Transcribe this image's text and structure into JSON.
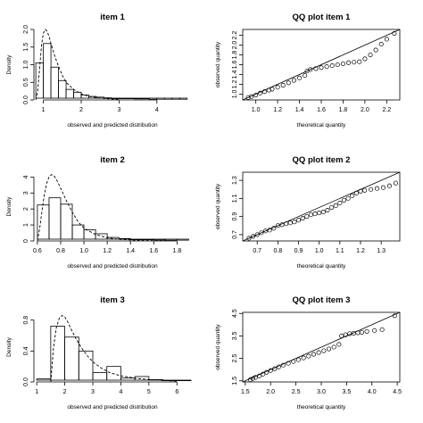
{
  "chart_data": [
    {
      "type": "histogram",
      "title": "item 1",
      "xlabel": "observed and predicted distribution",
      "ylabel": "Density",
      "xlim": [
        0.75,
        4.9
      ],
      "ylim": [
        0,
        2.0
      ],
      "xticks": [
        "1",
        "2",
        "3",
        "4"
      ],
      "yticks": [
        "0.0",
        "0.5",
        "1.0",
        "1.5",
        "2.0"
      ],
      "bins": [
        0.8,
        1.0,
        1.2,
        1.4,
        1.6,
        1.8,
        2.0,
        2.2,
        2.4,
        2.6,
        2.8,
        3.0,
        3.2,
        3.4,
        3.6,
        3.8,
        4.0,
        4.2,
        4.4,
        4.6,
        4.8
      ],
      "density": [
        1.05,
        1.6,
        0.93,
        0.55,
        0.3,
        0.22,
        0.14,
        0.1,
        0.08,
        0.06,
        0.05,
        0.05,
        0.04,
        0.03,
        0.03,
        0.02,
        0.02,
        0.02,
        0.02,
        0.02
      ],
      "curve": {
        "x": [
          0.8,
          0.85,
          0.9,
          0.95,
          1.0,
          1.05,
          1.1,
          1.15,
          1.2,
          1.3,
          1.4,
          1.5,
          1.6,
          1.8,
          2.0,
          2.2,
          2.5,
          3.0
        ],
        "y": [
          0,
          0.25,
          0.9,
          1.55,
          1.9,
          2.0,
          1.95,
          1.8,
          1.6,
          1.25,
          0.95,
          0.7,
          0.5,
          0.3,
          0.17,
          0.1,
          0.05,
          0.01
        ]
      }
    },
    {
      "type": "scatter",
      "title": "QQ plot item 1",
      "xlabel": "theoretical quantity",
      "ylabel": "observed quantity",
      "xlim": [
        0.88,
        2.32
      ],
      "ylim": [
        0.88,
        2.32
      ],
      "xticks": [
        "1.0",
        "1.2",
        "1.4",
        "1.6",
        "1.8",
        "2.0",
        "2.2"
      ],
      "yticks": [
        "1.0",
        "1.2",
        "1.4",
        "1.6",
        "1.8",
        "2.0",
        "2.2"
      ],
      "reference_line": "y = x",
      "points": {
        "x": [
          0.93,
          0.96,
          1.0,
          1.04,
          1.08,
          1.12,
          1.15,
          1.2,
          1.25,
          1.3,
          1.35,
          1.4,
          1.45,
          1.47,
          1.5,
          1.55,
          1.6,
          1.65,
          1.7,
          1.75,
          1.8,
          1.85,
          1.9,
          1.95,
          2.0,
          2.05,
          2.1,
          2.15,
          2.2,
          2.27
        ],
        "y": [
          0.93,
          0.95,
          0.98,
          1.02,
          1.05,
          1.08,
          1.1,
          1.14,
          1.18,
          1.23,
          1.28,
          1.33,
          1.38,
          1.47,
          1.5,
          1.52,
          1.54,
          1.56,
          1.58,
          1.6,
          1.62,
          1.64,
          1.65,
          1.66,
          1.72,
          1.8,
          1.9,
          2.02,
          2.12,
          2.24
        ]
      }
    },
    {
      "type": "histogram",
      "title": "item 2",
      "xlabel": "observed and predicted distribution",
      "ylabel": "Density",
      "xlim": [
        0.57,
        1.92
      ],
      "ylim": [
        0,
        4.3
      ],
      "xticks": [
        "0.6",
        "0.8",
        "1.0",
        "1.2",
        "1.4",
        "1.6",
        "1.8"
      ],
      "yticks": [
        "0",
        "1",
        "2",
        "3",
        "4"
      ],
      "bins": [
        0.6,
        0.7,
        0.8,
        0.9,
        1.0,
        1.1,
        1.2,
        1.3,
        1.4,
        1.5,
        1.6,
        1.7,
        1.8,
        1.9
      ],
      "density": [
        2.25,
        2.7,
        2.3,
        1.0,
        0.7,
        0.45,
        0.22,
        0.15,
        0.1,
        0.08,
        0.06,
        0.05,
        0.05
      ],
      "curve": {
        "x": [
          0.6,
          0.62,
          0.64,
          0.66,
          0.68,
          0.7,
          0.72,
          0.74,
          0.76,
          0.8,
          0.85,
          0.9,
          0.95,
          1.0,
          1.1,
          1.2,
          1.3,
          1.5,
          1.7
        ],
        "y": [
          0,
          0.8,
          1.9,
          2.9,
          3.6,
          4.0,
          4.15,
          4.1,
          3.9,
          3.3,
          2.5,
          1.8,
          1.2,
          0.8,
          0.4,
          0.2,
          0.1,
          0.03,
          0.01
        ]
      }
    },
    {
      "type": "scatter",
      "title": "QQ plot item 2",
      "xlabel": "theoretical quantity",
      "ylabel": "observed quantity",
      "xlim": [
        0.63,
        1.39
      ],
      "ylim": [
        0.63,
        1.39
      ],
      "xticks": [
        "0.7",
        "0.8",
        "0.9",
        "1.0",
        "1.1",
        "1.2",
        "1.3"
      ],
      "yticks": [
        "0.7",
        "0.9",
        "1.1",
        "1.3"
      ],
      "reference_line": "y = x",
      "points": {
        "x": [
          0.66,
          0.68,
          0.7,
          0.72,
          0.74,
          0.76,
          0.78,
          0.8,
          0.82,
          0.84,
          0.86,
          0.88,
          0.9,
          0.92,
          0.94,
          0.96,
          0.98,
          1.0,
          1.02,
          1.04,
          1.06,
          1.08,
          1.1,
          1.12,
          1.14,
          1.16,
          1.18,
          1.2,
          1.22,
          1.25,
          1.28,
          1.31,
          1.34,
          1.37
        ],
        "y": [
          0.66,
          0.68,
          0.7,
          0.72,
          0.74,
          0.75,
          0.77,
          0.8,
          0.81,
          0.82,
          0.83,
          0.84,
          0.86,
          0.88,
          0.9,
          0.92,
          0.93,
          0.94,
          0.95,
          0.97,
          1.0,
          1.02,
          1.05,
          1.08,
          1.1,
          1.13,
          1.16,
          1.18,
          1.19,
          1.2,
          1.21,
          1.22,
          1.24,
          1.27
        ]
      }
    },
    {
      "type": "histogram",
      "title": "item 3",
      "xlabel": "observed and predicted distribution",
      "ylabel": "Density",
      "xlim": [
        0.9,
        6.5
      ],
      "ylim": [
        0,
        0.9
      ],
      "xticks": [
        "1",
        "2",
        "3",
        "4",
        "5",
        "6"
      ],
      "yticks": [
        "0.0",
        "0.4",
        "0.8"
      ],
      "bins": [
        1.0,
        1.5,
        2.0,
        2.5,
        3.0,
        3.5,
        4.0,
        4.5,
        5.0,
        5.5,
        6.0,
        6.5
      ],
      "density": [
        0.04,
        0.72,
        0.58,
        0.4,
        0.12,
        0.2,
        0.05,
        0.07,
        0.03,
        0.02,
        0.02
      ],
      "curve": {
        "x": [
          1.5,
          1.6,
          1.7,
          1.8,
          1.9,
          2.0,
          2.1,
          2.2,
          2.4,
          2.6,
          2.8,
          3.0,
          3.3,
          3.6,
          4.0,
          4.5,
          5.0,
          5.5,
          6.0
        ],
        "y": [
          0,
          0.45,
          0.7,
          0.82,
          0.86,
          0.84,
          0.78,
          0.7,
          0.56,
          0.44,
          0.34,
          0.26,
          0.18,
          0.12,
          0.08,
          0.05,
          0.03,
          0.02,
          0.01
        ]
      }
    },
    {
      "type": "scatter",
      "title": "QQ plot item 3",
      "xlabel": "theoretical quantity",
      "ylabel": "observed quantity",
      "xlim": [
        1.45,
        4.55
      ],
      "ylim": [
        1.45,
        4.55
      ],
      "xticks": [
        "1.5",
        "2.0",
        "2.5",
        "3.0",
        "3.5",
        "4.0",
        "4.5"
      ],
      "yticks": [
        "1.5",
        "2.5",
        "3.5",
        "4.5"
      ],
      "reference_line": "y = x",
      "points": {
        "x": [
          1.6,
          1.65,
          1.7,
          1.78,
          1.85,
          1.92,
          2.0,
          2.08,
          2.16,
          2.25,
          2.35,
          2.45,
          2.55,
          2.65,
          2.75,
          2.85,
          2.95,
          3.05,
          3.15,
          3.25,
          3.35,
          3.4,
          3.48,
          3.56,
          3.64,
          3.72,
          3.8,
          3.9,
          4.05,
          4.2,
          4.45
        ],
        "y": [
          1.55,
          1.6,
          1.65,
          1.72,
          1.8,
          1.88,
          1.96,
          2.04,
          2.12,
          2.2,
          2.28,
          2.36,
          2.44,
          2.52,
          2.6,
          2.68,
          2.76,
          2.84,
          2.92,
          3.0,
          3.12,
          3.5,
          3.55,
          3.6,
          3.62,
          3.64,
          3.66,
          3.7,
          3.74,
          3.78,
          4.4
        ]
      }
    }
  ]
}
